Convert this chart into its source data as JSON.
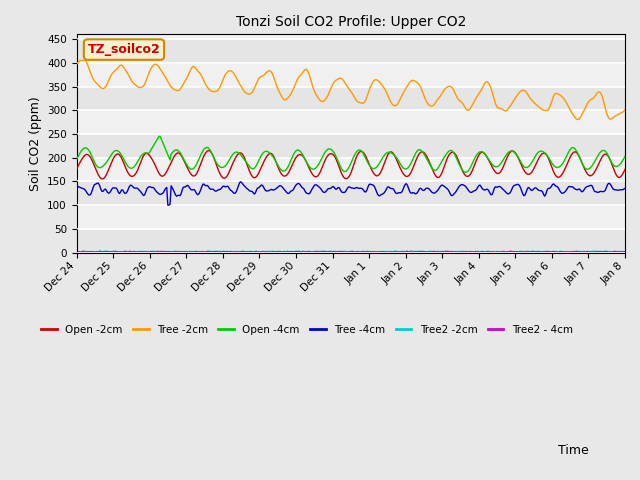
{
  "title": "Tonzi Soil CO2 Profile: Upper CO2",
  "ylabel": "Soil CO2 (ppm)",
  "xlabel": "Time",
  "annotation_text": "TZ_soilco2",
  "annotation_color": "#cc0000",
  "annotation_bg": "#f5f0d0",
  "annotation_border": "#cc8800",
  "ylim": [
    0,
    460
  ],
  "yticks": [
    0,
    50,
    100,
    150,
    200,
    250,
    300,
    350,
    400,
    450
  ],
  "fig_bg": "#e8e8e8",
  "plot_bg": "#f0f0f0",
  "legend_labels": [
    "Open -2cm",
    "Tree -2cm",
    "Open -4cm",
    "Tree -4cm",
    "Tree2 -2cm",
    "Tree2 - 4cm"
  ],
  "legend_colors": [
    "#cc0000",
    "#ff9900",
    "#00cc00",
    "#0000cc",
    "#00cccc",
    "#cc00cc"
  ],
  "tick_labels": [
    "Dec 24",
    "Dec 25",
    "Dec 26",
    "Dec 27",
    "Dec 28",
    "Dec 29",
    "Dec 30",
    "Dec 31",
    "Jan 1",
    "Jan 2",
    "Jan 3",
    "Jan 4",
    "Jan 5",
    "Jan 6",
    "Jan 7",
    "Jan 8"
  ],
  "n_points": 500,
  "seed": 42
}
